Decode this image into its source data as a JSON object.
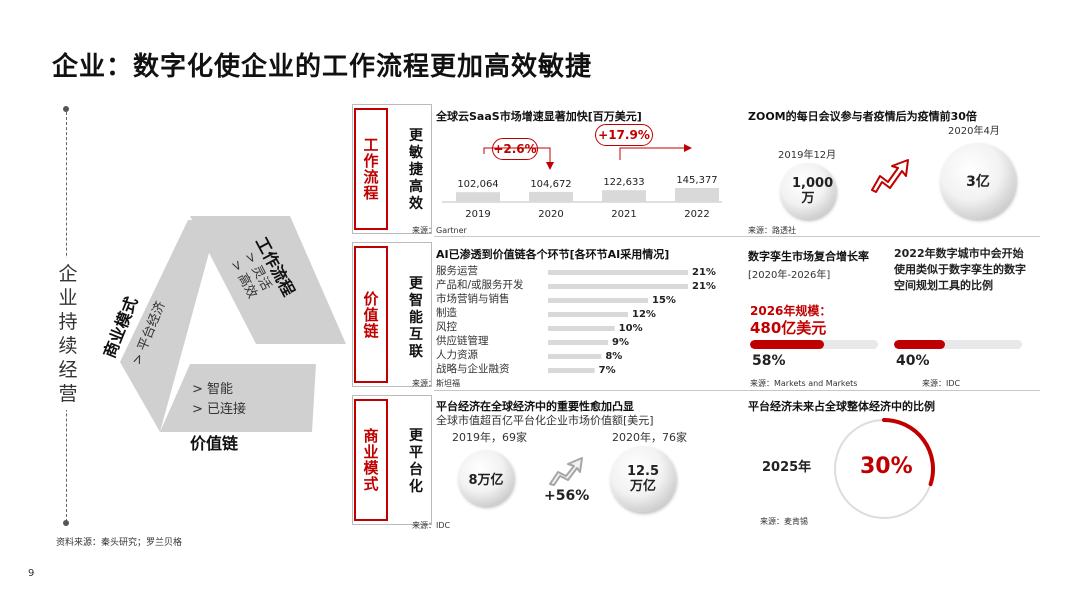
{
  "page": {
    "title": "企业：数字化使企业的工作流程更加高效敏捷",
    "left_vertical_text": "企业持续经营",
    "left_source": "资料来源：秦头研究；罗兰贝格",
    "page_number": "9"
  },
  "triangle": {
    "workflow": {
      "label": "工作流程",
      "items": [
        "> 灵活",
        "> 高效"
      ]
    },
    "business_model": {
      "label": "商业模式",
      "items": [
        "> 平台经济"
      ]
    },
    "value_chain": {
      "label": "价值链",
      "items": [
        "> 智能",
        "> 已连接"
      ]
    }
  },
  "sections": {
    "workflow": {
      "tag": "工作流程",
      "label": "更敏捷高效"
    },
    "value_chain": {
      "tag": "价值链",
      "label": "更智能互联"
    },
    "business_model": {
      "tag": "商业模式",
      "label": "更平台化"
    }
  },
  "saas": {
    "title": "全球云SaaS市场增速显著加快[百万美元]",
    "growth1": "+2.6%",
    "growth2": "+17.9%",
    "source": "来源：Gartner"
  },
  "zoom": {
    "title": "ZOOM的每日会议参与者疫情后为疫情前30倍",
    "date1": "2019年12月",
    "value1": "1,000万",
    "date2": "2020年4月",
    "value2": "3亿",
    "source": "来源：路透社"
  },
  "ai": {
    "title": "AI已渗透到价值链各个环节[各环节AI采用情况]",
    "source": "来源：斯坦福"
  },
  "twin": {
    "title_a": "数字孪生市场复合增长率",
    "title_a2": "[2020年-2026年]",
    "scale_label": "2026年规模：",
    "scale_value": "480亿美元",
    "pct_a": "58%",
    "source_a": "来源：Markets and Markets",
    "title_b": "2022年数字城市中会开始使用类似于数字孪生的数字空间规划工具的比例",
    "pct_b": "40%",
    "source_b": "来源：IDC"
  },
  "platform": {
    "title": "平台经济在全球经济中的重要性愈加凸显",
    "subtitle": "全球市值超百亿平台化企业市场价值额[美元]",
    "label1": "2019年，69家",
    "value1": "8万亿",
    "label2": "2020年，76家",
    "value2": "12.5万亿",
    "growth": "+56%",
    "source": "来源：IDC"
  },
  "global_share": {
    "title": "平台经济未来占全球整体经济中的比例",
    "year": "2025年",
    "pct": "30%",
    "source": "来源：麦肯锡"
  },
  "colors": {
    "accent": "#c00000",
    "bar": "#d9d9d9",
    "grey": "#a6a6a6"
  },
  "chart_data": [
    {
      "type": "bar",
      "title": "全球云SaaS市场增速显著加快[百万美元]",
      "categories": [
        "2019",
        "2020",
        "2021",
        "2022"
      ],
      "values": [
        102064,
        104672,
        122633,
        145377
      ],
      "value_labels": [
        "102,064",
        "104,672",
        "122,633",
        "145,377"
      ]
    },
    {
      "type": "bar",
      "title": "AI已渗透到价值链各个环节[各环节AI采用情况]",
      "categories": [
        "服务运营",
        "产品和/或服务开发",
        "市场营销与销售",
        "制造",
        "风控",
        "供应链管理",
        "人力资源",
        "战略与企业融资"
      ],
      "values": [
        21,
        21,
        15,
        12,
        10,
        9,
        8,
        7
      ],
      "value_labels": [
        "21%",
        "21%",
        "15%",
        "12%",
        "10%",
        "9%",
        "8%",
        "7%"
      ],
      "xlim": [
        0,
        21
      ]
    },
    {
      "type": "pie",
      "title": "平台经济未来占全球整体经济中的比例",
      "categories": [
        "2025年"
      ],
      "values": [
        30
      ]
    }
  ]
}
